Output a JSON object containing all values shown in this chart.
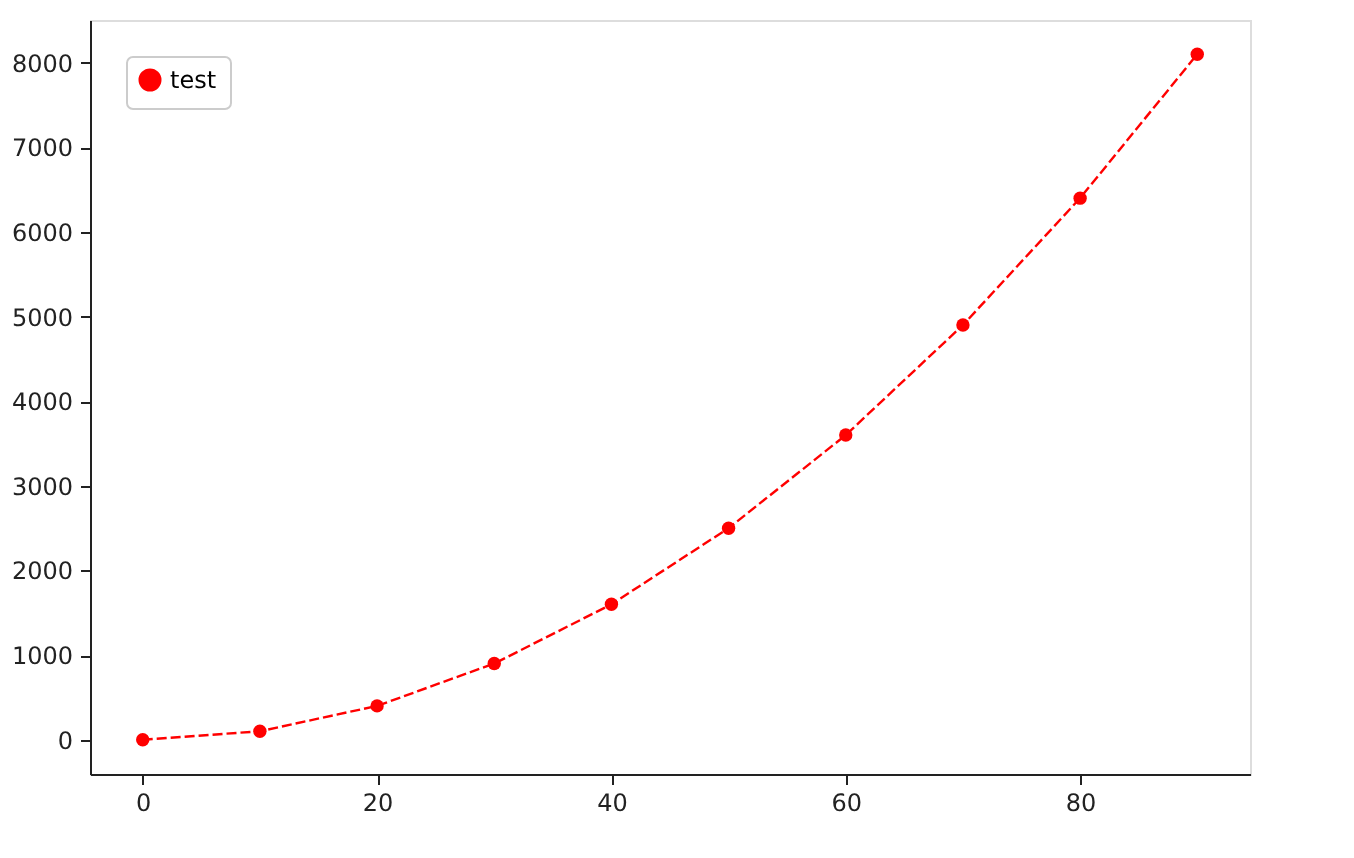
{
  "chart_data": {
    "type": "line",
    "x": [
      0,
      10,
      20,
      30,
      40,
      50,
      60,
      70,
      80,
      90
    ],
    "series": [
      {
        "name": "test",
        "color": "#ff0000",
        "values": [
          0,
          100,
          400,
          900,
          1600,
          2500,
          3600,
          4900,
          6400,
          8100
        ]
      }
    ],
    "xlim": [
      -4.5,
      94.5
    ],
    "xticks": [
      0,
      20,
      40,
      60,
      80
    ],
    "ylim": [
      -405,
      8505
    ],
    "yticks": [
      0,
      1000,
      2000,
      3000,
      4000,
      5000,
      6000,
      7000,
      8000
    ],
    "grid": false,
    "legend": "top left",
    "marker": "circle",
    "line_style": "dashed"
  }
}
